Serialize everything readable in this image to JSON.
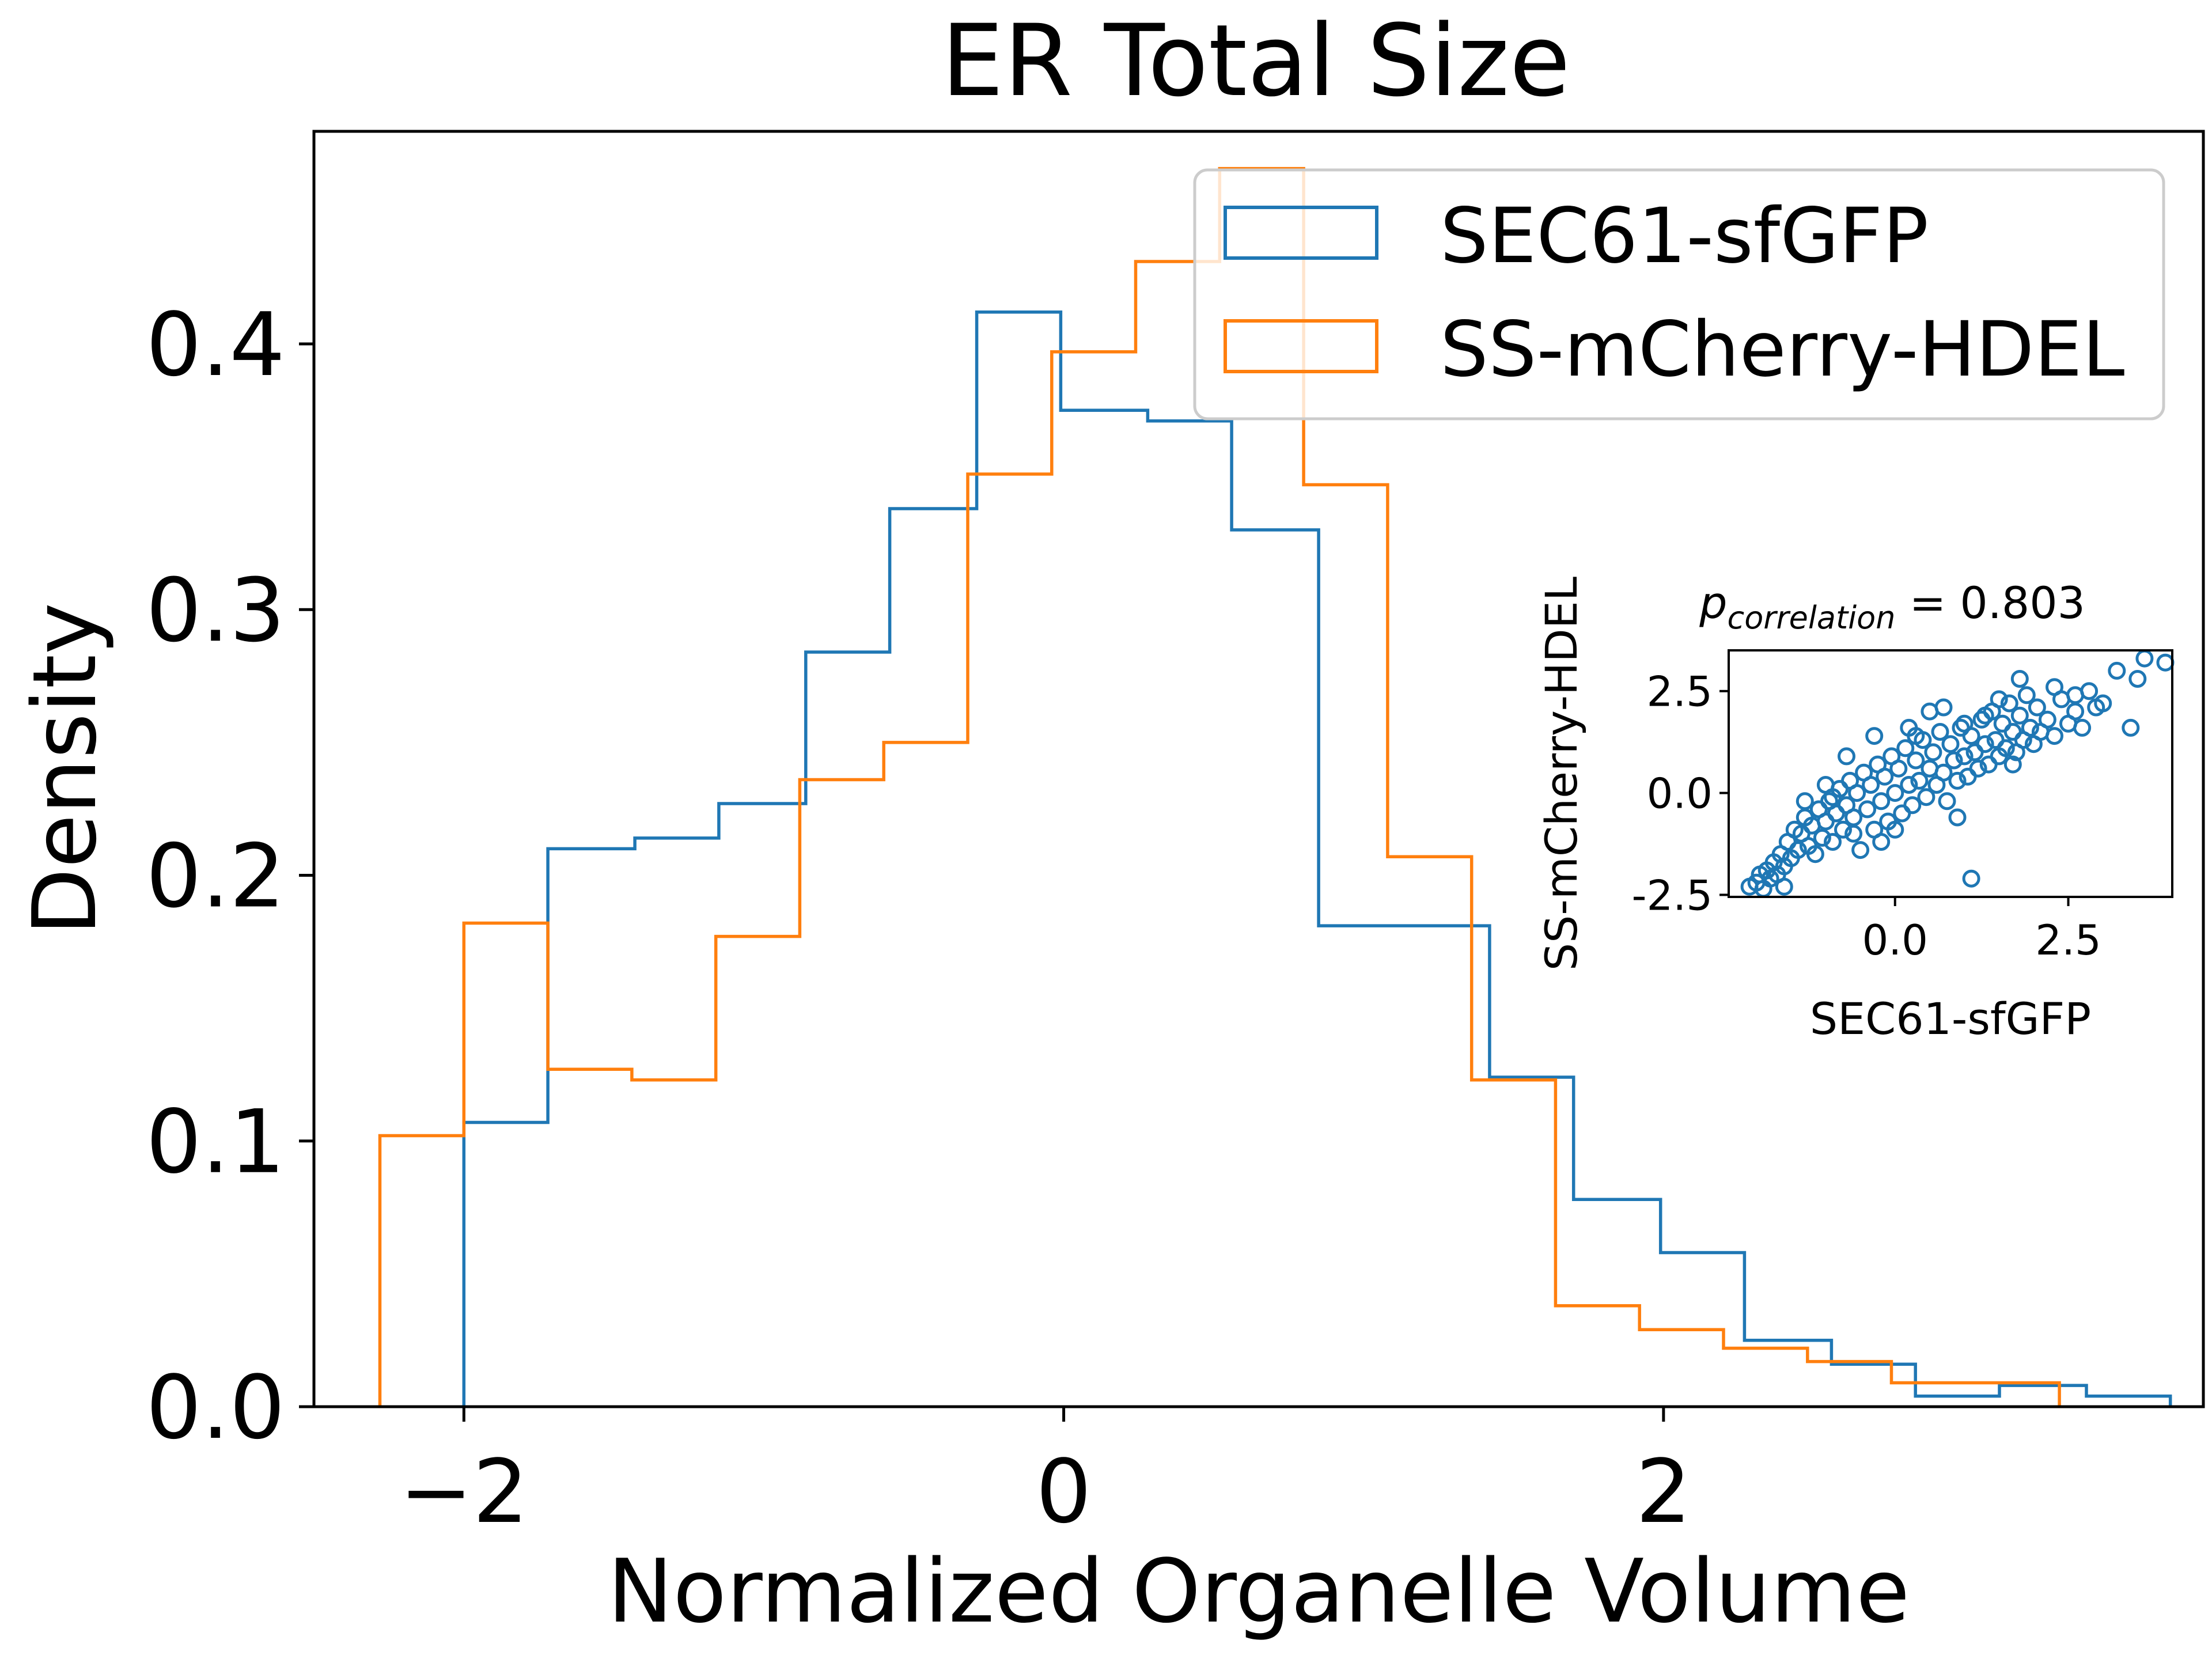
{
  "chart_data": [
    {
      "type": "histogram",
      "title": "ER Total Size",
      "xlabel": "Normalized Organelle Volume",
      "ylabel": "Density",
      "xlim": [
        -2.5,
        3.8
      ],
      "ylim": [
        0,
        0.48
      ],
      "xticks": [
        -2,
        0,
        2
      ],
      "xtick_labels": [
        "−2",
        "0",
        "2"
      ],
      "yticks": [
        0.0,
        0.1,
        0.2,
        0.3,
        0.4
      ],
      "ytick_labels": [
        "0.0",
        "0.1",
        "0.2",
        "0.3",
        "0.4"
      ],
      "grid": false,
      "legend_position": "top-right",
      "series": [
        {
          "name": "SEC61-sfGFP",
          "color": "#1f77b4",
          "bin_edges": [
            -2.0,
            -1.72,
            -1.43,
            -1.15,
            -0.86,
            -0.58,
            -0.29,
            -0.01,
            0.28,
            0.56,
            0.85,
            1.13,
            1.42,
            1.7,
            1.99,
            2.27,
            2.56,
            2.84,
            3.12,
            3.41,
            3.69
          ],
          "values": [
            0.107,
            0.21,
            0.214,
            0.227,
            0.284,
            0.338,
            0.412,
            0.375,
            0.371,
            0.33,
            0.181,
            0.181,
            0.124,
            0.078,
            0.058,
            0.025,
            0.016,
            0.004,
            0.008,
            0.004
          ]
        },
        {
          "name": "SS-mCherry-HDEL",
          "color": "#ff7f0e",
          "bin_edges": [
            -2.28,
            -2.0,
            -1.72,
            -1.44,
            -1.16,
            -0.88,
            -0.6,
            -0.32,
            -0.04,
            0.24,
            0.52,
            0.8,
            1.08,
            1.36,
            1.64,
            1.92,
            2.2,
            2.48,
            2.76,
            3.04,
            3.32
          ],
          "values": [
            0.102,
            0.182,
            0.127,
            0.123,
            0.177,
            0.236,
            0.25,
            0.351,
            0.397,
            0.431,
            0.466,
            0.347,
            0.207,
            0.123,
            0.038,
            0.029,
            0.022,
            0.017,
            0.009,
            0.009
          ]
        }
      ]
    },
    {
      "type": "scatter",
      "title_main": "p",
      "title_sub": "correlation",
      "title_value": " = 0.803",
      "xlabel": "SEC61-sfGFP",
      "ylabel": "SS-mCherry-HDEL",
      "xlim": [
        -2.4,
        4.0
      ],
      "ylim": [
        -2.55,
        3.5
      ],
      "xticks": [
        0.0,
        2.5
      ],
      "xtick_labels": [
        "0.0",
        "2.5"
      ],
      "yticks": [
        -2.5,
        0.0,
        2.5
      ],
      "ytick_labels": [
        "-2.5",
        "0.0",
        "2.5"
      ],
      "marker_color": "#1f77b4",
      "points": [
        [
          -2.1,
          -2.3
        ],
        [
          -2.0,
          -2.2
        ],
        [
          -1.95,
          -2.0
        ],
        [
          -1.9,
          -2.35
        ],
        [
          -1.85,
          -1.9
        ],
        [
          -1.8,
          -2.1
        ],
        [
          -1.75,
          -1.7
        ],
        [
          -1.7,
          -2.0
        ],
        [
          -1.65,
          -1.5
        ],
        [
          -1.6,
          -1.8
        ],
        [
          -1.55,
          -1.2
        ],
        [
          -1.5,
          -1.6
        ],
        [
          -1.45,
          -0.9
        ],
        [
          -1.4,
          -1.4
        ],
        [
          -1.35,
          -1.0
        ],
        [
          -1.3,
          -0.6
        ],
        [
          -1.25,
          -1.3
        ],
        [
          -1.2,
          -0.8
        ],
        [
          -1.15,
          -1.5
        ],
        [
          -1.1,
          -0.4
        ],
        [
          -1.05,
          -1.1
        ],
        [
          -1.0,
          -0.7
        ],
        [
          -0.95,
          -0.2
        ],
        [
          -0.9,
          -1.2
        ],
        [
          -0.85,
          -0.5
        ],
        [
          -0.8,
          0.1
        ],
        [
          -0.75,
          -0.9
        ],
        [
          -0.7,
          -0.3
        ],
        [
          -0.65,
          0.3
        ],
        [
          -0.6,
          -0.6
        ],
        [
          -0.55,
          0.0
        ],
        [
          -0.5,
          -1.4
        ],
        [
          -0.45,
          0.5
        ],
        [
          -0.4,
          -0.4
        ],
        [
          -0.35,
          0.2
        ],
        [
          -0.3,
          -0.9
        ],
        [
          -0.25,
          0.7
        ],
        [
          -0.2,
          -0.2
        ],
        [
          -0.15,
          0.4
        ],
        [
          -0.1,
          -0.7
        ],
        [
          -0.05,
          0.9
        ],
        [
          0.0,
          0.0
        ],
        [
          0.05,
          0.6
        ],
        [
          0.1,
          -0.5
        ],
        [
          0.15,
          1.1
        ],
        [
          0.2,
          0.2
        ],
        [
          0.25,
          -0.3
        ],
        [
          0.3,
          0.8
        ],
        [
          0.35,
          0.3
        ],
        [
          0.4,
          1.3
        ],
        [
          0.45,
          -0.1
        ],
        [
          0.5,
          0.6
        ],
        [
          0.55,
          1.0
        ],
        [
          0.6,
          0.2
        ],
        [
          0.65,
          1.5
        ],
        [
          0.7,
          0.5
        ],
        [
          0.75,
          -0.2
        ],
        [
          0.8,
          1.2
        ],
        [
          0.85,
          0.8
        ],
        [
          0.9,
          0.3
        ],
        [
          0.95,
          1.6
        ],
        [
          1.0,
          0.9
        ],
        [
          1.05,
          0.4
        ],
        [
          1.1,
          1.4
        ],
        [
          1.15,
          1.0
        ],
        [
          1.2,
          0.6
        ],
        [
          1.25,
          1.8
        ],
        [
          1.3,
          1.2
        ],
        [
          1.35,
          0.7
        ],
        [
          1.4,
          2.0
        ],
        [
          1.45,
          1.3
        ],
        [
          1.5,
          0.9
        ],
        [
          1.55,
          1.7
        ],
        [
          1.6,
          1.1
        ],
        [
          1.65,
          2.2
        ],
        [
          1.7,
          1.5
        ],
        [
          1.75,
          1.0
        ],
        [
          1.8,
          1.9
        ],
        [
          1.85,
          1.3
        ],
        [
          1.9,
          2.4
        ],
        [
          1.95,
          1.6
        ],
        [
          2.0,
          1.2
        ],
        [
          2.05,
          2.1
        ],
        [
          2.1,
          1.5
        ],
        [
          2.2,
          1.8
        ],
        [
          2.3,
          1.4
        ],
        [
          2.4,
          2.3
        ],
        [
          2.5,
          1.7
        ],
        [
          2.6,
          2.0
        ],
        [
          2.7,
          1.6
        ],
        [
          2.8,
          2.5
        ],
        [
          3.0,
          2.2
        ],
        [
          3.2,
          3.0
        ],
        [
          3.4,
          1.6
        ],
        [
          3.5,
          2.8
        ],
        [
          3.9,
          3.2
        ],
        [
          3.6,
          3.3
        ],
        [
          1.1,
          -2.1
        ],
        [
          0.9,
          -0.6
        ],
        [
          -1.6,
          -2.3
        ],
        [
          -0.3,
          1.4
        ],
        [
          0.5,
          2.0
        ],
        [
          1.8,
          2.8
        ],
        [
          -0.7,
          0.9
        ],
        [
          0.2,
          1.6
        ],
        [
          -1.0,
          0.2
        ],
        [
          2.3,
          2.6
        ],
        [
          1.3,
          1.9
        ],
        [
          -0.2,
          -1.2
        ],
        [
          0.7,
          2.1
        ],
        [
          1.0,
          1.7
        ],
        [
          -1.3,
          -0.2
        ],
        [
          2.6,
          2.4
        ],
        [
          0.0,
          -0.9
        ],
        [
          -0.6,
          -1.0
        ],
        [
          1.5,
          2.3
        ],
        [
          0.3,
          1.4
        ],
        [
          -0.9,
          -0.1
        ],
        [
          1.7,
          0.7
        ],
        [
          2.9,
          2.1
        ]
      ]
    }
  ]
}
